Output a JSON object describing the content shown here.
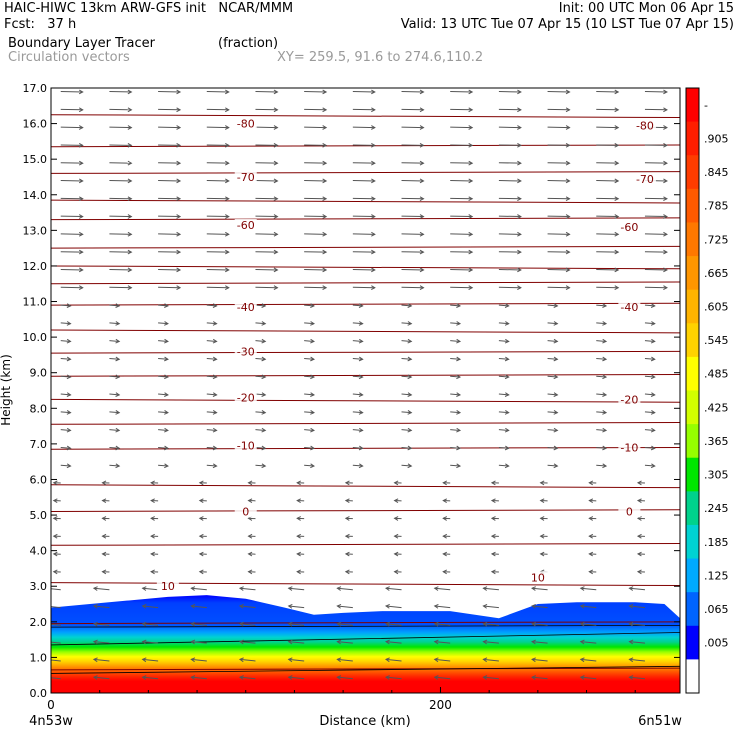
{
  "header": {
    "line1_left": "HAIC-HIWC 13km ARW-GFS init   NCAR/MMM",
    "line1_right": "Init: 00 UTC Mon 06 Apr 15",
    "line2_left": "Fcst:   37 h",
    "line2_right": "Valid: 13 UTC Tue 07 Apr 15 (10 LST Tue 07 Apr 15)",
    "field1_name": "Boundary Layer Tracer",
    "field1_units": "(fraction)",
    "field2_name": "Circulation vectors",
    "xy_text": "XY= 259.5, 91.6 to 274.6,110.2"
  },
  "chart_data": {
    "type": "cross-section",
    "xlabel": "Distance (km)",
    "ylabel": "Height (km)",
    "x_tick_labels": [
      "0",
      "200"
    ],
    "x_ticks": [
      0,
      200
    ],
    "xlim": [
      0,
      323
    ],
    "ylim": [
      0,
      17
    ],
    "y_ticks": [
      "0.0",
      "1.0",
      "2.0",
      "3.0",
      "4.0",
      "5.0",
      "6.0",
      "7.0",
      "8.0",
      "9.0",
      "10.0",
      "11.0",
      "12.0",
      "13.0",
      "14.0",
      "15.0",
      "16.0",
      "17.0"
    ],
    "left_endpoint": "4n53w",
    "right_endpoint": "6n51w",
    "colorbar_labels": [
      "-",
      ".905",
      ".845",
      ".785",
      ".725",
      ".665",
      ".605",
      ".545",
      ".485",
      ".425",
      ".365",
      ".305",
      ".245",
      ".185",
      ".125",
      ".065",
      ".005"
    ],
    "colorbar_colors": [
      "#ff0000",
      "#ff1e00",
      "#ff3c00",
      "#ff5a00",
      "#ff7800",
      "#ff9600",
      "#ffb400",
      "#ffd200",
      "#ffff00",
      "#d2ff00",
      "#96ff00",
      "#00e600",
      "#00d28c",
      "#00d2d2",
      "#00aaff",
      "#0064ff",
      "#0000ff",
      "#ffffff"
    ],
    "tracer_top_km": [
      [
        0,
        2.4
      ],
      [
        20,
        2.5
      ],
      [
        40,
        2.6
      ],
      [
        60,
        2.7
      ],
      [
        80,
        2.75
      ],
      [
        100,
        2.65
      ],
      [
        120,
        2.4
      ],
      [
        135,
        2.2
      ],
      [
        150,
        2.25
      ],
      [
        170,
        2.3
      ],
      [
        190,
        2.3
      ],
      [
        205,
        2.3
      ],
      [
        230,
        2.1
      ],
      [
        250,
        2.5
      ],
      [
        270,
        2.55
      ],
      [
        300,
        2.55
      ],
      [
        315,
        2.5
      ],
      [
        323,
        2.1
      ]
    ],
    "temperature_contours_c": [
      -80,
      -70,
      -60,
      -40,
      -30,
      -20,
      -10,
      0,
      10
    ],
    "temperature_labels": [
      {
        "value": "-80",
        "x": 100,
        "y": 16.0
      },
      {
        "value": "-80",
        "x": 305,
        "y": 15.95
      },
      {
        "value": "-70",
        "x": 100,
        "y": 14.5
      },
      {
        "value": "-70",
        "x": 305,
        "y": 14.45
      },
      {
        "value": "-60",
        "x": 100,
        "y": 13.15
      },
      {
        "value": "-60",
        "x": 297,
        "y": 13.1
      },
      {
        "value": "-40",
        "x": 100,
        "y": 10.85
      },
      {
        "value": "-40",
        "x": 297,
        "y": 10.85
      },
      {
        "value": "-30",
        "x": 100,
        "y": 9.6
      },
      {
        "value": "-20",
        "x": 100,
        "y": 8.3
      },
      {
        "value": "-20",
        "x": 297,
        "y": 8.25
      },
      {
        "value": "-10",
        "x": 100,
        "y": 6.95
      },
      {
        "value": "-10",
        "x": 297,
        "y": 6.9
      },
      {
        "value": "0",
        "x": 100,
        "y": 5.1
      },
      {
        "value": "0",
        "x": 297,
        "y": 5.1
      },
      {
        "value": "10",
        "x": 60,
        "y": 3.0
      },
      {
        "value": "10",
        "x": 250,
        "y": 3.25
      }
    ],
    "contour_color": "#800000"
  }
}
